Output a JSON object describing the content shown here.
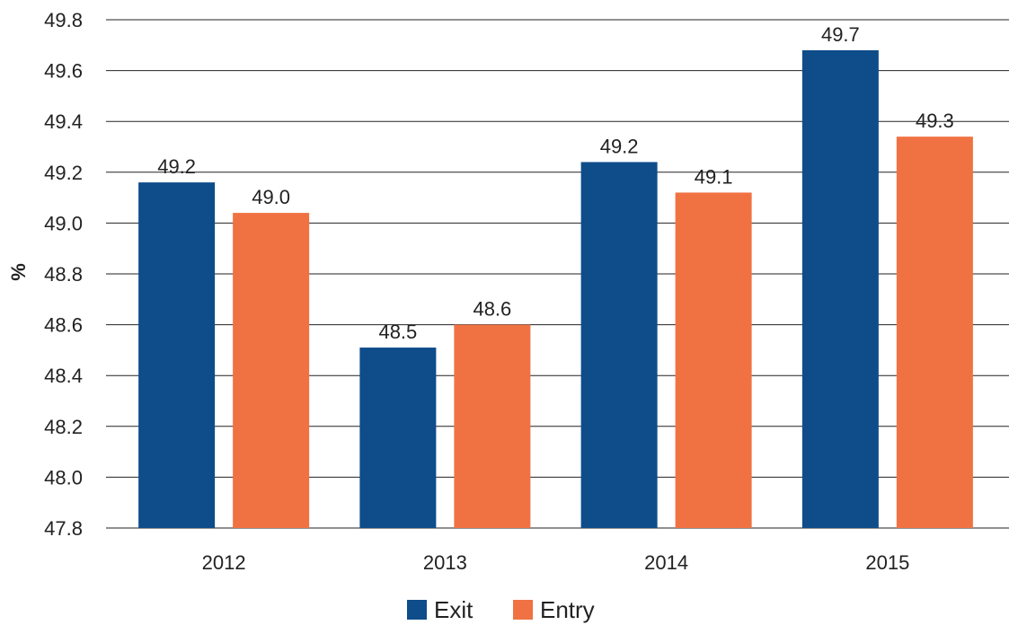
{
  "chart_data": {
    "type": "bar",
    "categories": [
      "2012",
      "2013",
      "2014",
      "2015"
    ],
    "series": [
      {
        "name": "Exit",
        "color": "#0f4c8a",
        "values": [
          49.16,
          48.51,
          49.24,
          49.68
        ],
        "labels": [
          "49.2",
          "48.5",
          "49.2",
          "49.7"
        ]
      },
      {
        "name": "Entry",
        "color": "#f07243",
        "values": [
          49.04,
          48.6,
          49.12,
          49.34
        ],
        "labels": [
          "49.0",
          "48.6",
          "49.1",
          "49.3"
        ]
      }
    ],
    "ylabel": "%",
    "xlabel": "",
    "title": "",
    "ylim": [
      47.8,
      49.8
    ],
    "yticks": [
      "47.8",
      "48.0",
      "48.2",
      "48.4",
      "48.6",
      "48.8",
      "49.0",
      "49.2",
      "49.4",
      "49.6",
      "49.8"
    ],
    "grid": true,
    "legend_position": "bottom-center"
  }
}
